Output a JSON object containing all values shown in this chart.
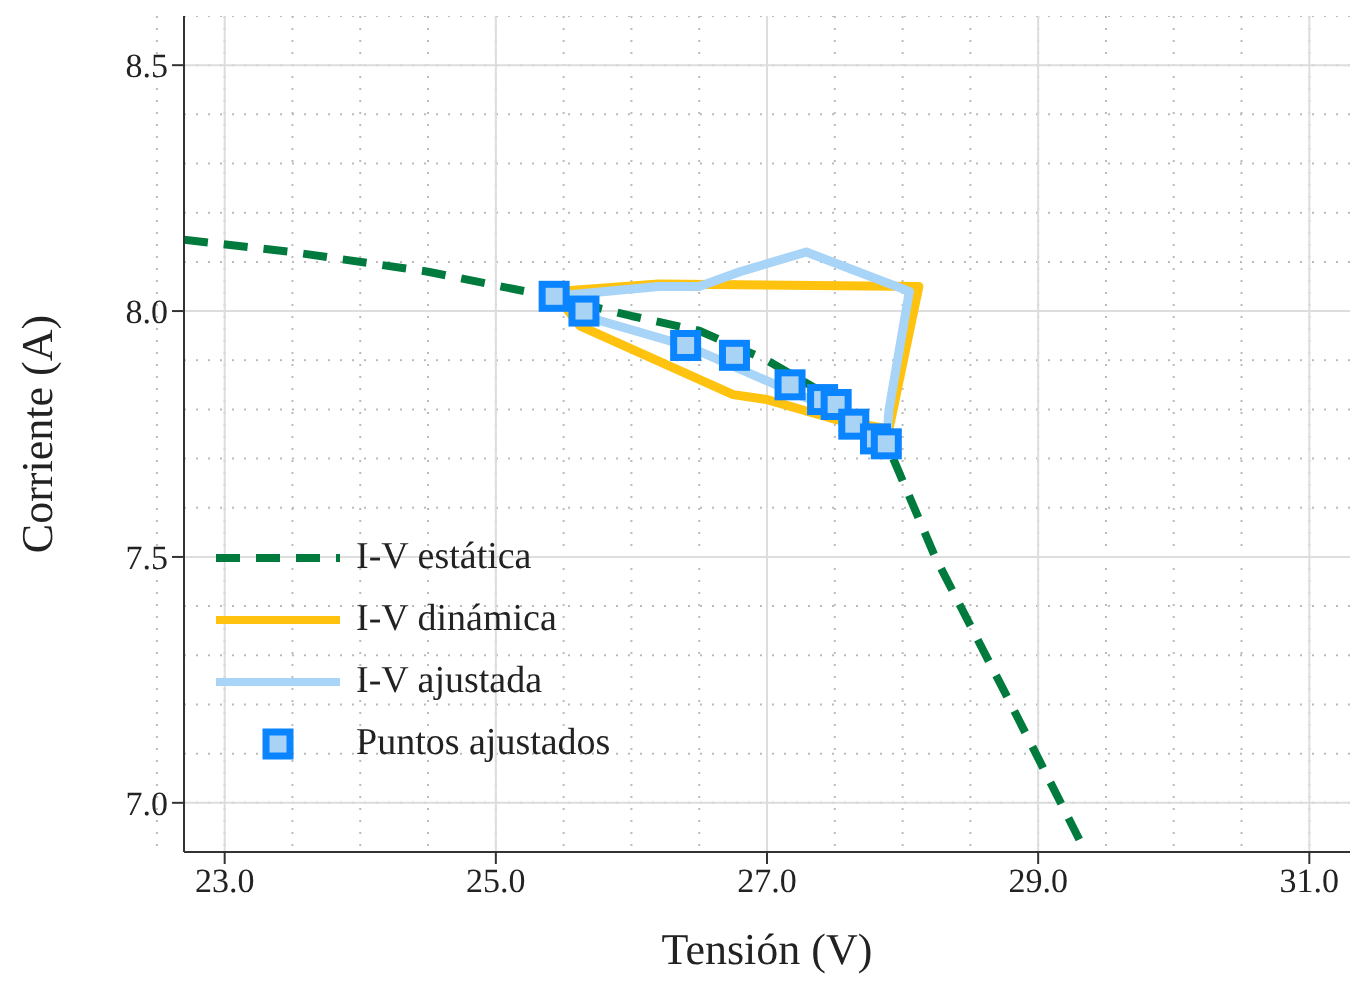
{
  "chart_data": {
    "type": "line",
    "xlabel": "Tensión (V)",
    "ylabel": "Corriente (A)",
    "xlim": [
      22.7,
      31.3
    ],
    "ylim": [
      6.9,
      8.6
    ],
    "xticks": [
      {
        "value": 23,
        "label": "23.0"
      },
      {
        "value": 25,
        "label": "25.0"
      },
      {
        "value": 27,
        "label": "27.0"
      },
      {
        "value": 29,
        "label": "29.0"
      },
      {
        "value": 31,
        "label": "31.0"
      }
    ],
    "yticks": [
      {
        "value": 7,
        "label": "7.0"
      },
      {
        "value": 7.5,
        "label": "7.5"
      },
      {
        "value": 8,
        "label": "8.0"
      },
      {
        "value": 8.5,
        "label": "8.5"
      }
    ],
    "grid": true,
    "legend": "bottom left",
    "series": [
      {
        "name": "I-V estática",
        "line_style": "dashed",
        "color": "#007a3d",
        "x": [
          22.7,
          23.5,
          24.5,
          25.4,
          26.0,
          26.5,
          27.0,
          27.5,
          27.9,
          28.24,
          28.8,
          29.35
        ],
        "values": [
          8.145,
          8.12,
          8.08,
          8.03,
          7.99,
          7.96,
          7.9,
          7.82,
          7.72,
          7.5,
          7.2,
          6.9
        ]
      },
      {
        "name": "I-V dinámica",
        "line_style": "solid",
        "color": "#ffc20e",
        "x": [
          25.45,
          26.2,
          28.12,
          27.9,
          27.5,
          27.0,
          26.75,
          25.62,
          25.45
        ],
        "values": [
          8.04,
          8.055,
          8.05,
          7.76,
          7.78,
          7.82,
          7.83,
          7.97,
          8.03
        ]
      },
      {
        "name": "I-V ajustada",
        "line_style": "solid",
        "color": "#a8d4f8",
        "x": [
          25.43,
          26.2,
          26.5,
          26.8,
          27.29,
          28.05,
          27.9,
          27.88,
          27.4,
          26.4,
          25.65,
          25.45
        ],
        "values": [
          8.03,
          8.05,
          8.05,
          8.08,
          8.12,
          8.04,
          7.8,
          7.73,
          7.81,
          7.93,
          7.99,
          8.02
        ]
      },
      {
        "name": "Puntos ajustados",
        "type": "scatter",
        "marker": "square",
        "color": "#0a84ff",
        "x": [
          25.43,
          25.65,
          26.4,
          26.76,
          27.17,
          27.41,
          27.51,
          27.64,
          27.8,
          27.88
        ],
        "values": [
          8.03,
          8.0,
          7.93,
          7.91,
          7.85,
          7.82,
          7.81,
          7.77,
          7.74,
          7.73
        ]
      }
    ]
  }
}
